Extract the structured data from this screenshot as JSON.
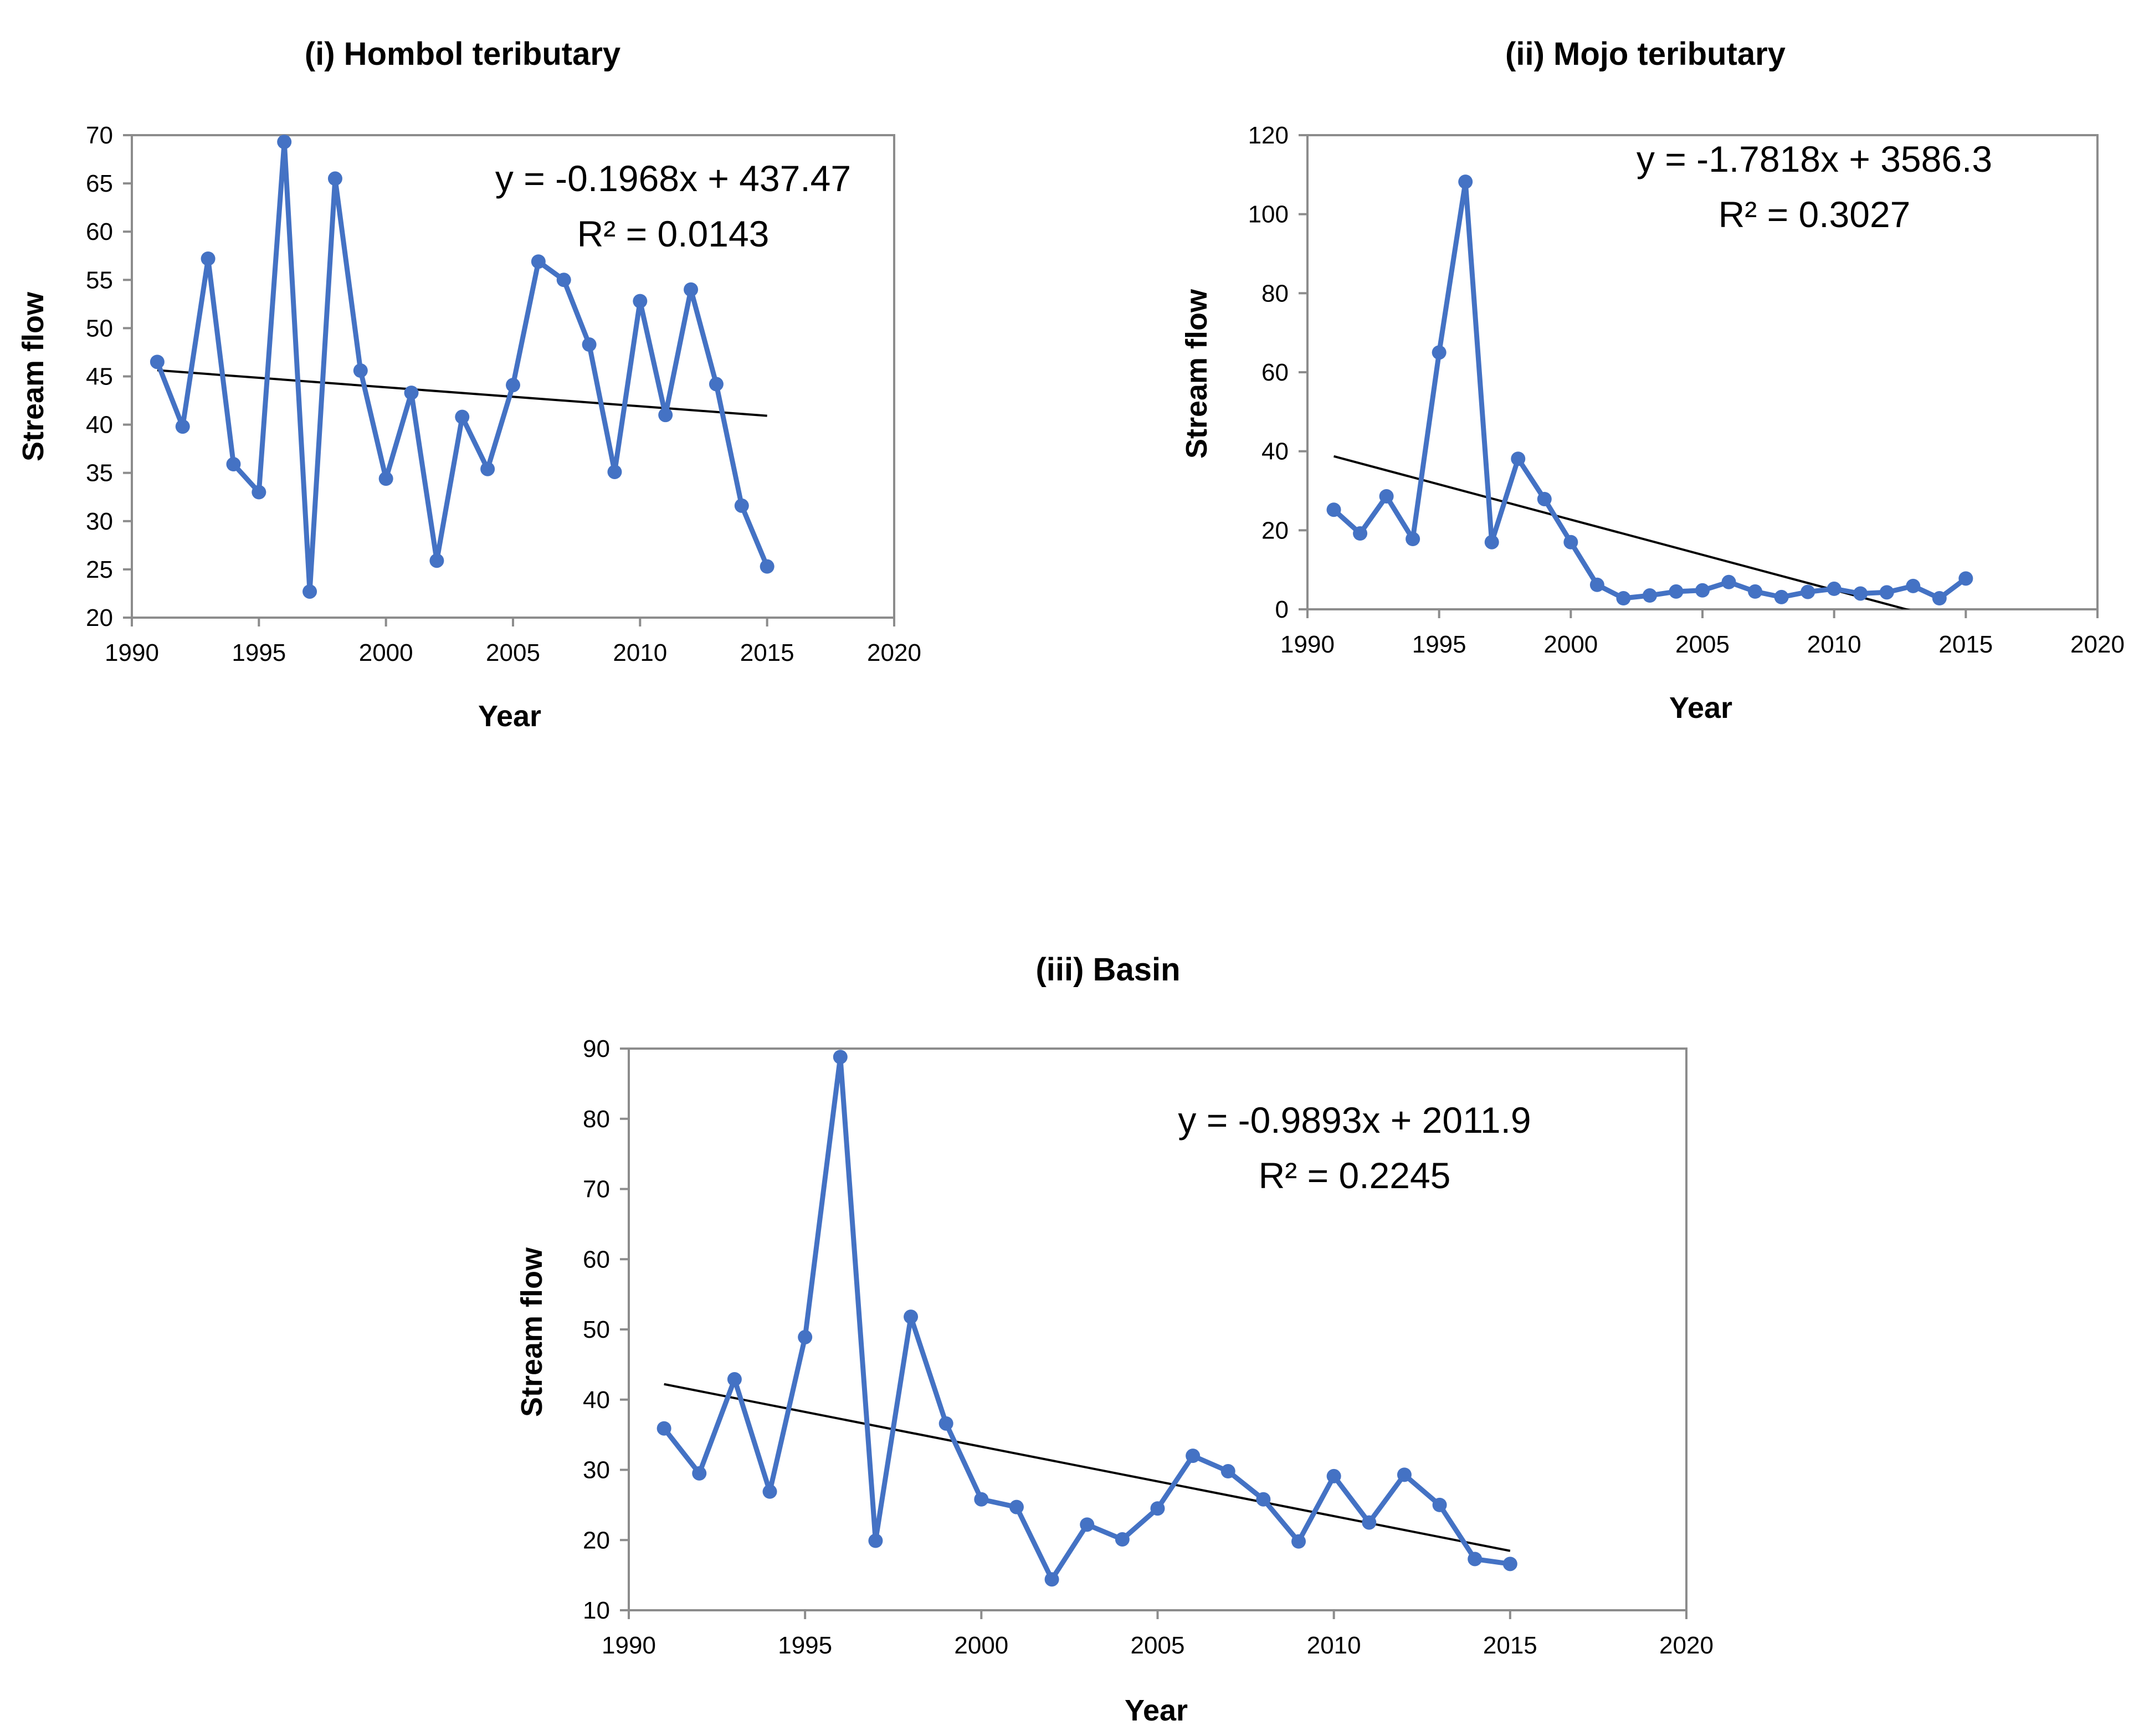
{
  "chart_data": [
    {
      "type": "line",
      "title": "(i) Hombol teributary",
      "xlabel": "Year",
      "ylabel": "Stream flow",
      "xlim": [
        1990,
        2020
      ],
      "ylim": [
        20,
        70
      ],
      "xticks": [
        "1990",
        "1995",
        "2000",
        "2005",
        "2010",
        "2015",
        "2020"
      ],
      "yticks": [
        "20",
        "25",
        "30",
        "35",
        "40",
        "45",
        "50",
        "55",
        "60",
        "65",
        "70"
      ],
      "legend": "none",
      "x": [
        1991,
        1992,
        1993,
        1994,
        1995,
        1996,
        1997,
        1998,
        1999,
        2000,
        2001,
        2002,
        2003,
        2004,
        2005,
        2006,
        2007,
        2008,
        2009,
        2010,
        2011,
        2012,
        2013,
        2014,
        2015
      ],
      "series": [
        {
          "name": "Stream flow",
          "color": "#4472c4",
          "values": [
            46.5,
            39.8,
            57.2,
            35.9,
            33.0,
            69.3,
            22.7,
            65.5,
            45.6,
            34.4,
            43.3,
            25.9,
            40.8,
            35.4,
            44.1,
            56.9,
            55.0,
            48.3,
            35.1,
            52.8,
            41.0,
            54.0,
            44.2,
            31.6,
            25.3
          ]
        }
      ],
      "trendline": {
        "slope": -0.1968,
        "intercept": 437.47,
        "x_range": [
          1991,
          2015
        ],
        "equation": "y = -0.1968x + 437.47",
        "r2_label": "R² = 0.0143"
      }
    },
    {
      "type": "line",
      "title": "(ii) Mojo teributary",
      "xlabel": "Year",
      "ylabel": "Stream flow",
      "xlim": [
        1990,
        2020
      ],
      "ylim": [
        0,
        120
      ],
      "xticks": [
        "1990",
        "1995",
        "2000",
        "2005",
        "2010",
        "2015",
        "2020"
      ],
      "yticks": [
        "0",
        "20",
        "40",
        "60",
        "80",
        "100",
        "120"
      ],
      "legend": "none",
      "x": [
        1991,
        1992,
        1993,
        1994,
        1995,
        1996,
        1997,
        1998,
        1999,
        2000,
        2001,
        2002,
        2003,
        2004,
        2005,
        2006,
        2007,
        2008,
        2009,
        2010,
        2011,
        2012,
        2013,
        2014,
        2015
      ],
      "series": [
        {
          "name": "Stream flow",
          "color": "#4472c4",
          "values": [
            25.2,
            19.2,
            28.6,
            17.8,
            65.0,
            108.2,
            17.0,
            38.1,
            27.9,
            17.0,
            6.2,
            2.8,
            3.5,
            4.5,
            4.8,
            6.9,
            4.5,
            3.1,
            4.4,
            5.2,
            4.0,
            4.3,
            5.9,
            2.8,
            7.8
          ]
        }
      ],
      "trendline": {
        "slope": -1.7818,
        "intercept": 3586.3,
        "x_range": [
          1991,
          2015
        ],
        "equation": "y = -1.7818x + 3586.3",
        "r2_label": "R² = 0.3027"
      }
    },
    {
      "type": "line",
      "title": "(iii) Basin",
      "xlabel": "Year",
      "ylabel": "Stream flow",
      "xlim": [
        1990,
        2020
      ],
      "ylim": [
        10,
        90
      ],
      "xticks": [
        "1990",
        "1995",
        "2000",
        "2005",
        "2010",
        "2015",
        "2020"
      ],
      "yticks": [
        "10",
        "20",
        "30",
        "40",
        "50",
        "60",
        "70",
        "80",
        "90"
      ],
      "legend": "none",
      "x": [
        1991,
        1992,
        1993,
        1994,
        1995,
        1996,
        1997,
        1998,
        1999,
        2000,
        2001,
        2002,
        2003,
        2004,
        2005,
        2006,
        2007,
        2008,
        2009,
        2010,
        2011,
        2012,
        2013,
        2014,
        2015
      ],
      "series": [
        {
          "name": "Stream flow",
          "color": "#4472c4",
          "values": [
            35.9,
            29.5,
            42.9,
            26.9,
            48.9,
            88.8,
            19.9,
            51.8,
            36.6,
            25.8,
            24.7,
            14.4,
            22.2,
            20.1,
            24.5,
            32.0,
            29.8,
            25.8,
            19.8,
            29.1,
            22.5,
            29.3,
            25.0,
            17.3,
            16.6
          ]
        }
      ],
      "trendline": {
        "slope": -0.9893,
        "intercept": 2011.9,
        "x_range": [
          1991,
          2015
        ],
        "equation": "y = -0.9893x + 2011.9",
        "r2_label": "R² = 0.2245"
      }
    }
  ]
}
